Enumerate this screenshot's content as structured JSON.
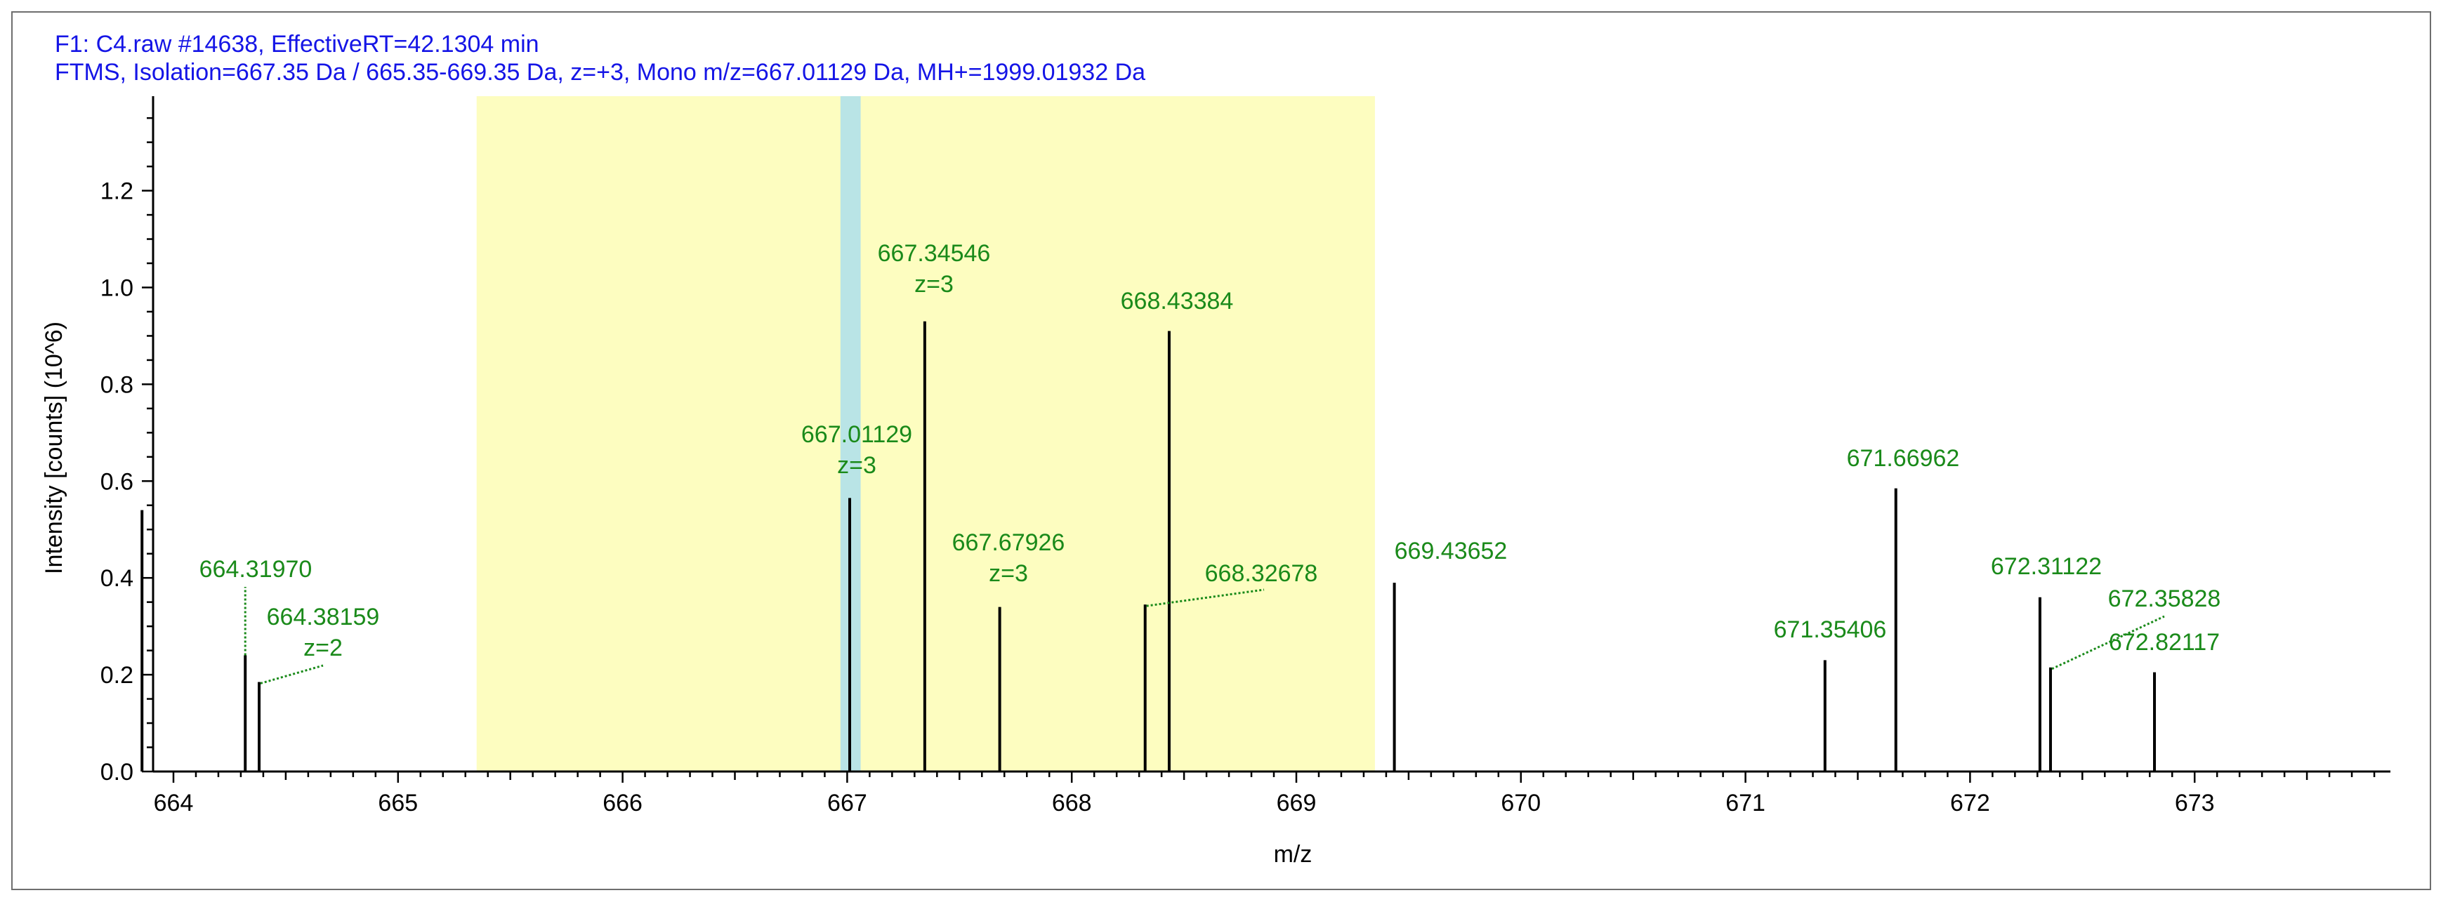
{
  "header": {
    "line1": "F1: C4.raw  #14638, EffectiveRT=42.1304 min",
    "line2": "FTMS, Isolation=667.35 Da / 665.35-669.35 Da, z=+3, Mono m/z=667.01129 Da, MH+=1999.01932 Da"
  },
  "colors": {
    "header_text": "#1515e6",
    "peak_label": "#1a8a1a",
    "isolation_window": "#fdfdc0",
    "precursor_band": "#b9e4e6",
    "peak_line": "#000000"
  },
  "chart_data": {
    "type": "bar",
    "xlabel": "m/z",
    "ylabel": "Intensity [counts] (10^6)",
    "xlim": [
      663.8,
      673.8
    ],
    "ylim": [
      0.0,
      1.4
    ],
    "xticks": [
      "664",
      "665",
      "666",
      "667",
      "668",
      "669",
      "670",
      "671",
      "672",
      "673"
    ],
    "yticks": [
      "0.0",
      "0.2",
      "0.4",
      "0.6",
      "0.8",
      "1.0",
      "1.2"
    ],
    "isolation_window": [
      665.35,
      669.35
    ],
    "precursor_band": [
      666.97,
      667.06
    ],
    "peaks": [
      {
        "mz": 663.86,
        "intensity": 0.54,
        "label": []
      },
      {
        "mz": 664.3197,
        "intensity": 0.24,
        "label": [
          "664.31970"
        ],
        "leader": "up"
      },
      {
        "mz": 664.38159,
        "intensity": 0.185,
        "label": [
          "664.38159",
          "z=2"
        ],
        "leader": "diag"
      },
      {
        "mz": 667.01129,
        "intensity": 0.565,
        "label": [
          "667.01129",
          "z=3"
        ]
      },
      {
        "mz": 667.34546,
        "intensity": 0.93,
        "label": [
          "667.34546",
          "z=3"
        ]
      },
      {
        "mz": 667.67926,
        "intensity": 0.34,
        "label": [
          "667.67926",
          "z=3"
        ]
      },
      {
        "mz": 668.32678,
        "intensity": 0.345,
        "label": [
          "668.32678"
        ],
        "leader": "diag"
      },
      {
        "mz": 668.43384,
        "intensity": 0.91,
        "label": [
          "668.43384"
        ]
      },
      {
        "mz": 669.43652,
        "intensity": 0.39,
        "label": [
          "669.43652"
        ]
      },
      {
        "mz": 671.35406,
        "intensity": 0.23,
        "label": [
          "671.35406"
        ]
      },
      {
        "mz": 671.66962,
        "intensity": 0.585,
        "label": [
          "671.66962"
        ]
      },
      {
        "mz": 672.31122,
        "intensity": 0.36,
        "label": [
          "672.31122"
        ]
      },
      {
        "mz": 672.35828,
        "intensity": 0.215,
        "label": [
          "672.35828"
        ],
        "leader": "diag"
      },
      {
        "mz": 672.82117,
        "intensity": 0.205,
        "label": [
          "672.82117"
        ]
      }
    ]
  }
}
